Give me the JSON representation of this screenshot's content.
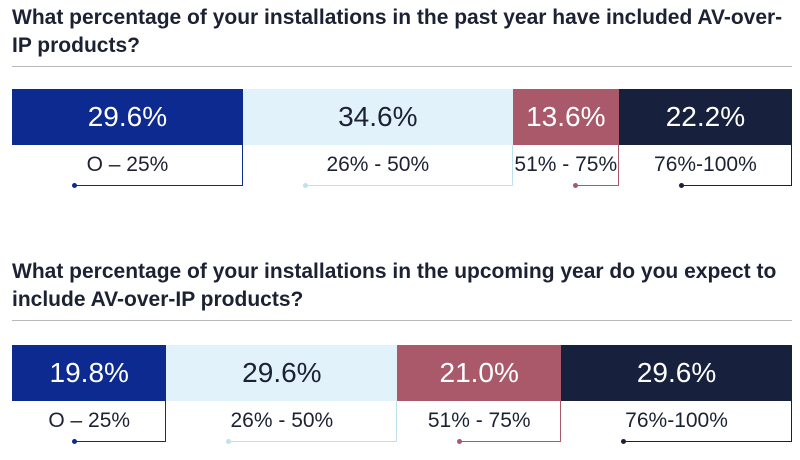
{
  "colors": [
    "#0c2a8f",
    "#e1f2fa",
    "#a9596a",
    "#17213e"
  ],
  "text_colors": [
    "#ffffff",
    "#1c2233",
    "#ffffff",
    "#ffffff"
  ],
  "chart_data": [
    {
      "type": "bar",
      "stacked": true,
      "title": "What percentage of your installations in the past year have included AV-over-IP products?",
      "categories": [
        "O – 25%",
        "26% - 50%",
        "51% - 75%",
        "76%-100%"
      ],
      "values": [
        29.6,
        34.6,
        13.6,
        22.2
      ],
      "value_labels": [
        "29.6%",
        "34.6%",
        "13.6%",
        "22.2%"
      ]
    },
    {
      "type": "bar",
      "stacked": true,
      "title": "What percentage of your installations in the upcoming year do you expect to include AV-over-IP products?",
      "categories": [
        "O – 25%",
        "26% - 50%",
        "51% - 75%",
        "76%-100%"
      ],
      "values": [
        19.8,
        29.6,
        21.0,
        29.6
      ],
      "value_labels": [
        "19.8%",
        "29.6%",
        "21.0%",
        "29.6%"
      ]
    }
  ]
}
